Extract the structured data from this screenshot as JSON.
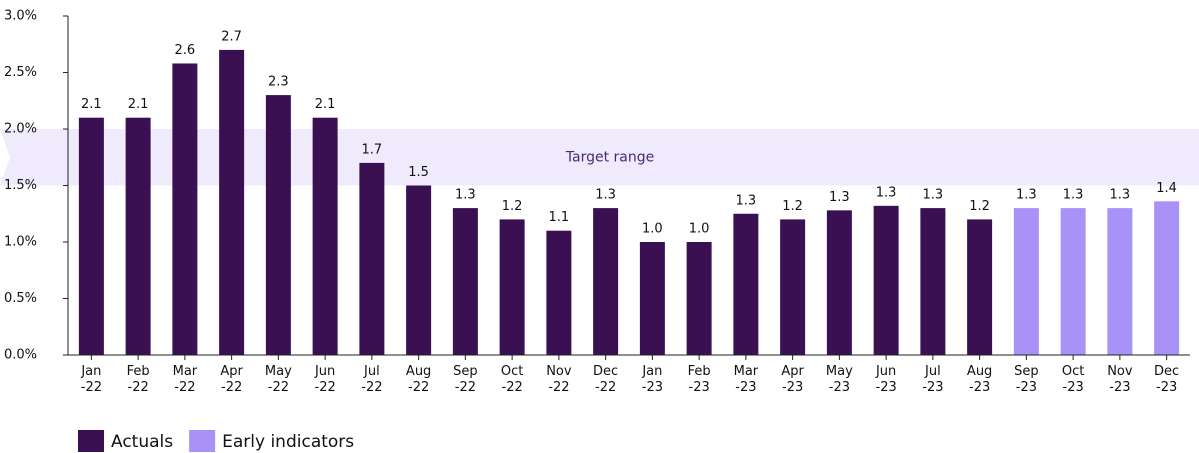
{
  "chart_data": {
    "type": "bar",
    "categories": [
      "Jan-22",
      "Feb-22",
      "Mar-22",
      "Apr-22",
      "May-22",
      "Jun-22",
      "Jul-22",
      "Aug-22",
      "Sep-22",
      "Oct-22",
      "Nov-22",
      "Dec-22",
      "Jan-23",
      "Feb-23",
      "Mar-23",
      "Apr-23",
      "May-23",
      "Jun-23",
      "Jul-23",
      "Aug-23",
      "Sep-23",
      "Oct-23",
      "Nov-23",
      "Dec-23"
    ],
    "series": [
      {
        "name": "Actuals",
        "color": "#3a1053",
        "values": [
          2.1,
          2.1,
          2.58,
          2.7,
          2.3,
          2.1,
          1.7,
          1.5,
          1.3,
          1.2,
          1.1,
          1.3,
          1.0,
          1.0,
          1.25,
          1.2,
          1.28,
          1.32,
          1.3,
          1.2,
          null,
          null,
          null,
          null
        ],
        "value_labels": [
          "2.1",
          "2.1",
          "2.6",
          "2.7",
          "2.3",
          "2.1",
          "1.7",
          "1.5",
          "1.3",
          "1.2",
          "1.1",
          "1.3",
          "1.0",
          "1.0",
          "1.3",
          "1.2",
          "1.3",
          "1.3",
          "1.3",
          "1.2",
          null,
          null,
          null,
          null
        ]
      },
      {
        "name": "Early indicators",
        "color": "#a992f7",
        "values": [
          null,
          null,
          null,
          null,
          null,
          null,
          null,
          null,
          null,
          null,
          null,
          null,
          null,
          null,
          null,
          null,
          null,
          null,
          null,
          null,
          1.3,
          1.3,
          1.3,
          1.36
        ],
        "value_labels": [
          null,
          null,
          null,
          null,
          null,
          null,
          null,
          null,
          null,
          null,
          null,
          null,
          null,
          null,
          null,
          null,
          null,
          null,
          null,
          null,
          "1.3",
          "1.3",
          "1.3",
          "1.4"
        ]
      }
    ],
    "target_range": {
      "label": "Target range",
      "from": 1.5,
      "to": 2.0,
      "color": "#efebfd"
    },
    "ylim": [
      0,
      3.0
    ],
    "yticks": [
      {
        "value": 0,
        "label": "0.0%"
      },
      {
        "value": 0.5,
        "label": "0.5%"
      },
      {
        "value": 1.0,
        "label": "1.0%"
      },
      {
        "value": 1.5,
        "label": "1.5%"
      },
      {
        "value": 2.0,
        "label": "2.0%"
      },
      {
        "value": 2.5,
        "label": "2.5%"
      },
      {
        "value": 3.0,
        "label": "3.0%"
      }
    ],
    "legend": "bottom-left"
  }
}
